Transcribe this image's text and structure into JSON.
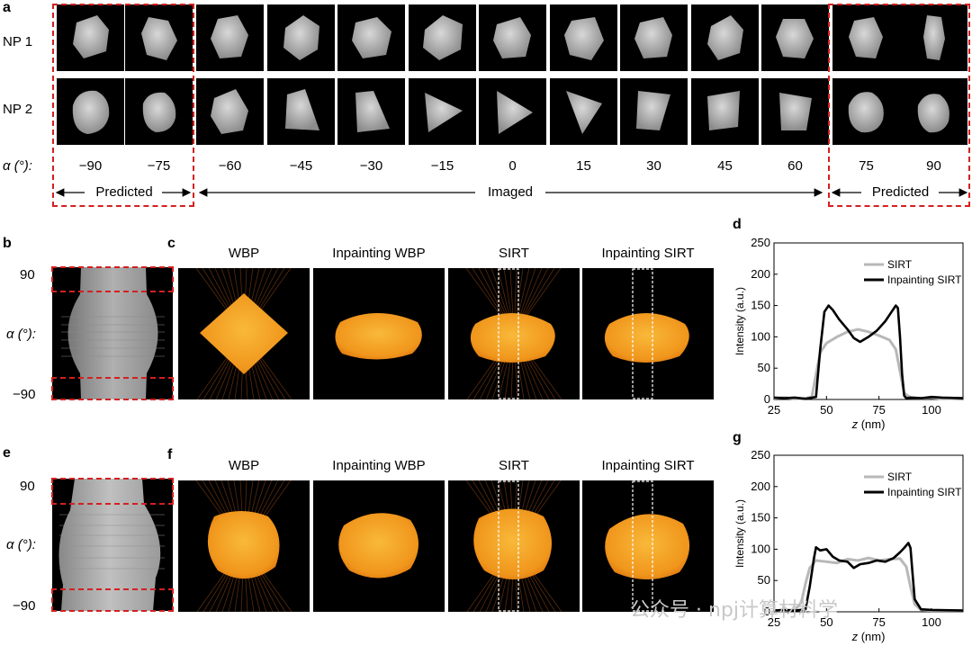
{
  "panels": {
    "a": "a",
    "b": "b",
    "c": "c",
    "d": "d",
    "e": "e",
    "f": "f",
    "g": "g"
  },
  "panel_a": {
    "row_labels": [
      "NP 1",
      "NP 2"
    ],
    "angle_label": "α (°):",
    "angles": [
      "−90",
      "−75",
      "−60",
      "−45",
      "−30",
      "−15",
      "0",
      "15",
      "30",
      "45",
      "60",
      "75",
      "90"
    ],
    "left_predicted": "Predicted",
    "imaged": "Imaged",
    "right_predicted": "Predicted"
  },
  "panel_b": {
    "top_tick": "90",
    "axis_label": "α (°):",
    "bottom_tick": "−90"
  },
  "panel_e": {
    "top_tick": "90",
    "axis_label": "α (°):",
    "bottom_tick": "−90"
  },
  "panel_c_titles": [
    "WBP",
    "Inpainting WBP",
    "SIRT",
    "Inpainting SIRT"
  ],
  "panel_f_titles": [
    "WBP",
    "Inpainting WBP",
    "SIRT",
    "Inpainting SIRT"
  ],
  "watermark": "公众号 · npj计算材料学",
  "colors": {
    "dashed_red": "#d42020",
    "sirt_line": "#b8b8b8",
    "inpainting_line": "#000000",
    "recon_orange": "#f4a526"
  },
  "chart_data": [
    {
      "type": "line",
      "panel": "d",
      "xlabel_var": "z",
      "xlabel_unit": " (nm)",
      "ylabel": "Intensity (a.u.)",
      "xlim": [
        25,
        115
      ],
      "ylim": [
        0,
        250
      ],
      "xticks": [
        "25",
        "50",
        "75",
        "100"
      ],
      "xtick_values": [
        25,
        50,
        75,
        100
      ],
      "yticks": [
        "0",
        "50",
        "100",
        "150",
        "200",
        "250"
      ],
      "ytick_values": [
        0,
        50,
        100,
        150,
        200,
        250
      ],
      "legend_position": "top-right",
      "series": [
        {
          "name": "SIRT",
          "color": "#b8b8b8",
          "x": [
            25,
            30,
            35,
            40,
            43,
            45,
            47,
            50,
            55,
            60,
            65,
            70,
            75,
            80,
            83,
            85,
            87,
            90,
            95,
            100,
            105,
            115
          ],
          "y": [
            2,
            3,
            1,
            2,
            4,
            40,
            75,
            90,
            100,
            108,
            112,
            108,
            102,
            95,
            80,
            45,
            10,
            3,
            2,
            3,
            1,
            2
          ]
        },
        {
          "name": "Inpainting SIRT",
          "color": "#000000",
          "x": [
            25,
            30,
            35,
            40,
            45,
            47,
            49,
            51,
            53,
            56,
            60,
            63,
            66,
            70,
            74,
            78,
            81,
            83,
            84,
            85,
            86,
            87,
            88,
            90,
            95,
            100,
            105,
            115
          ],
          "y": [
            3,
            2,
            3,
            1,
            4,
            80,
            140,
            150,
            143,
            128,
            112,
            98,
            92,
            100,
            110,
            125,
            140,
            150,
            146,
            100,
            40,
            6,
            2,
            3,
            2,
            4,
            3,
            2
          ]
        }
      ]
    },
    {
      "type": "line",
      "panel": "g",
      "xlabel_var": "z",
      "xlabel_unit": " (nm)",
      "ylabel": "Intensity (a.u.)",
      "xlim": [
        25,
        115
      ],
      "ylim": [
        0,
        250
      ],
      "xticks": [
        "25",
        "50",
        "75",
        "100"
      ],
      "xtick_values": [
        25,
        50,
        75,
        100
      ],
      "yticks": [
        "0",
        "50",
        "100",
        "150",
        "200",
        "250"
      ],
      "ytick_values": [
        0,
        50,
        100,
        150,
        200,
        250
      ],
      "legend_position": "top-right",
      "series": [
        {
          "name": "SIRT",
          "color": "#b8b8b8",
          "x": [
            25,
            30,
            35,
            38,
            40,
            42,
            45,
            50,
            55,
            60,
            65,
            70,
            75,
            80,
            85,
            88,
            90,
            92,
            95,
            100,
            115
          ],
          "y": [
            2,
            2,
            3,
            15,
            45,
            70,
            82,
            80,
            78,
            84,
            82,
            86,
            82,
            84,
            85,
            72,
            40,
            12,
            3,
            2,
            2
          ]
        },
        {
          "name": "Inpainting SIRT",
          "color": "#000000",
          "x": [
            25,
            30,
            35,
            40,
            42,
            44,
            45,
            47,
            50,
            53,
            56,
            60,
            63,
            66,
            70,
            74,
            78,
            82,
            85,
            87,
            89,
            90,
            91,
            92,
            95,
            100,
            115
          ],
          "y": [
            2,
            3,
            2,
            4,
            40,
            85,
            103,
            98,
            100,
            88,
            82,
            80,
            70,
            76,
            78,
            82,
            80,
            86,
            95,
            102,
            110,
            102,
            60,
            20,
            4,
            3,
            2
          ]
        }
      ]
    }
  ]
}
